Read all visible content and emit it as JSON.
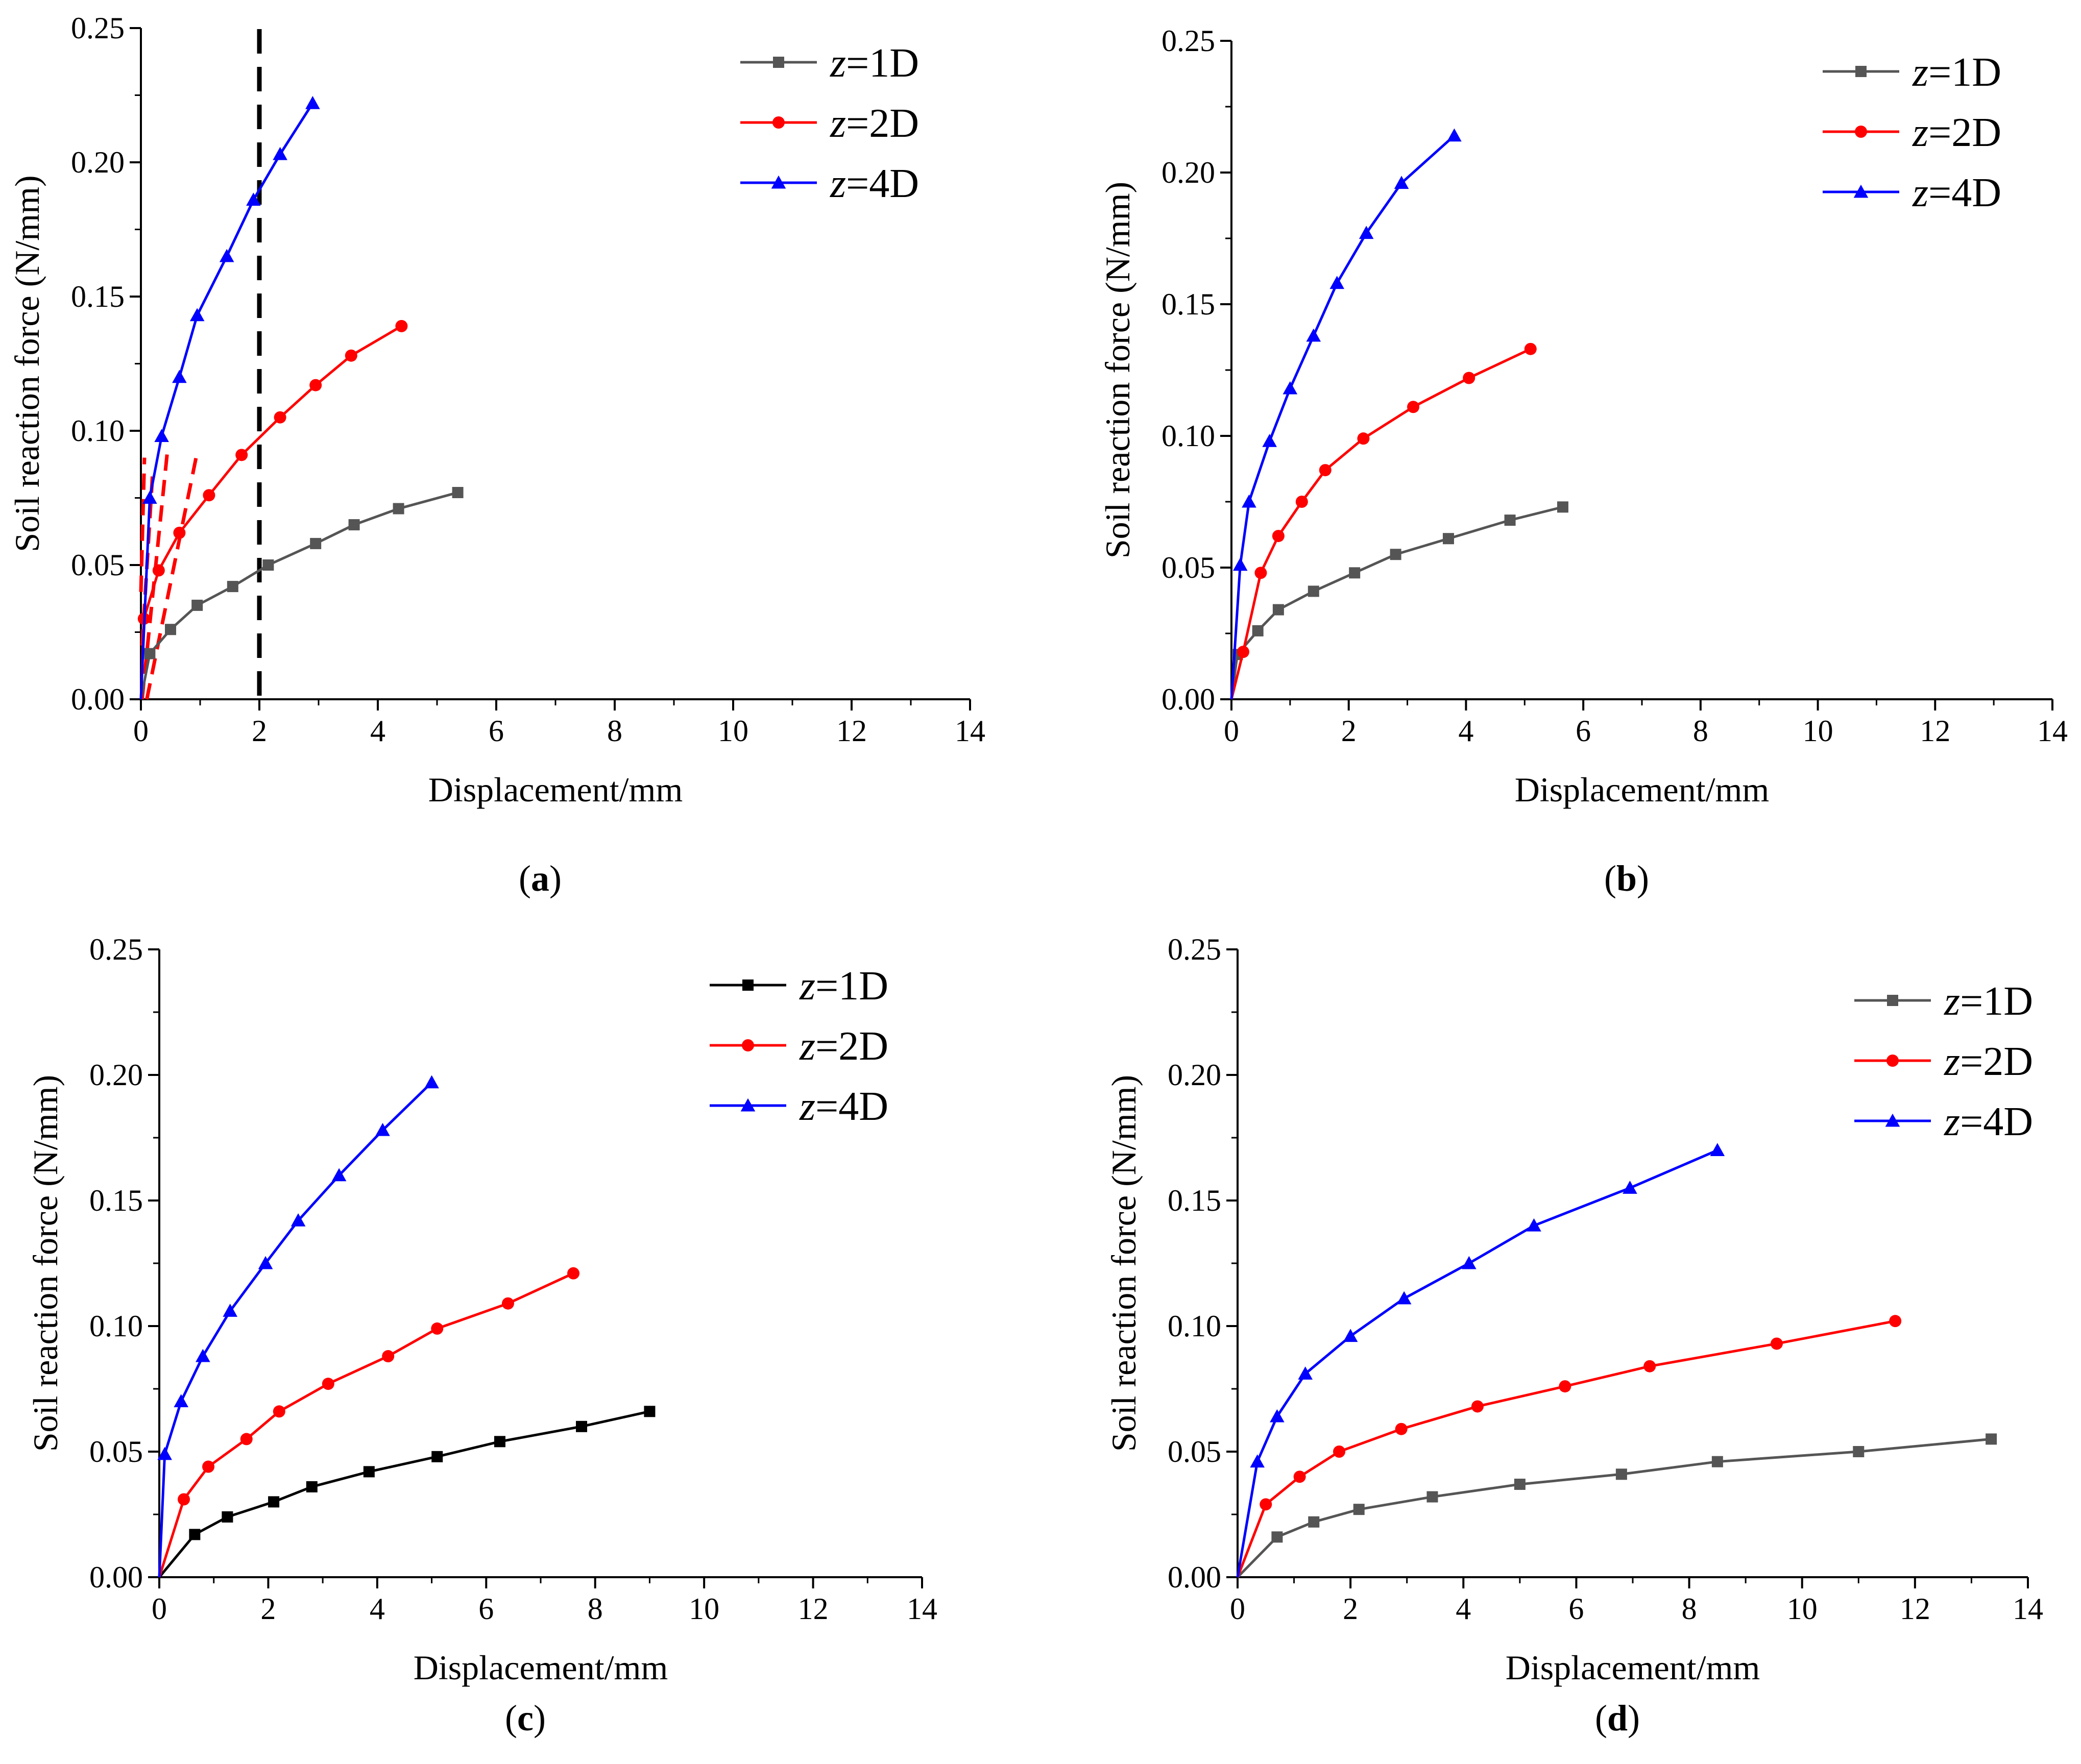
{
  "figure": {
    "panels": [
      {
        "label_open": "(",
        "label_letter": "a",
        "label_close": ")"
      },
      {
        "label_open": "(",
        "label_letter": "b",
        "label_close": ")"
      },
      {
        "label_open": "(",
        "label_letter": "c",
        "label_close": ")"
      },
      {
        "label_open": "(",
        "label_letter": "d",
        "label_close": ")"
      }
    ]
  },
  "chart_data": [
    {
      "type": "line",
      "xlabel": "Displacement/mm",
      "ylabel": "Soil reaction force (N/mm)",
      "xlim": [
        0,
        14
      ],
      "ylim": [
        0,
        0.25
      ],
      "xticks": [
        "0",
        "2",
        "4",
        "6",
        "8",
        "10",
        "12",
        "14"
      ],
      "yticks": [
        "0.00",
        "0.05",
        "0.10",
        "0.15",
        "0.20",
        "0.25"
      ],
      "legend_position": "top-right",
      "series": [
        {
          "name_var": "z",
          "name_rest": "=1D",
          "color": "#555555",
          "marker": "square",
          "x": [
            0,
            0.15,
            0.5,
            0.95,
            1.55,
            2.15,
            2.95,
            3.6,
            4.35,
            5.35
          ],
          "y": [
            0,
            0.017,
            0.026,
            0.035,
            0.042,
            0.05,
            0.058,
            0.065,
            0.071,
            0.077
          ]
        },
        {
          "name_var": "z",
          "name_rest": "=2D",
          "color": "#ff0000",
          "marker": "circle",
          "x": [
            0,
            0.05,
            0.3,
            0.65,
            1.15,
            1.7,
            2.35,
            2.95,
            3.55,
            4.4
          ],
          "y": [
            0,
            0.03,
            0.048,
            0.062,
            0.076,
            0.091,
            0.105,
            0.117,
            0.128,
            0.139
          ]
        },
        {
          "name_var": "z",
          "name_rest": "=4D",
          "color": "#0000ff",
          "marker": "triangle",
          "x": [
            0,
            0.15,
            0.35,
            0.65,
            0.95,
            1.45,
            1.9,
            2.35,
            2.9
          ],
          "y": [
            0,
            0.075,
            0.098,
            0.12,
            0.143,
            0.165,
            0.186,
            0.203,
            0.222
          ]
        }
      ],
      "annotations": {
        "vertical_dashed_line_x": 2,
        "vertical_line_color": "#000000",
        "red_dashed_segments": [
          {
            "x": [
              0.02,
              0.45
            ],
            "y": [
              0.0,
              0.093
            ]
          },
          {
            "x": [
              0.1,
              0.95
            ],
            "y": [
              0.0,
              0.092
            ]
          },
          {
            "x": [
              0.02,
              0.2
            ],
            "y": [
              0.02,
              0.085
            ]
          },
          {
            "x": [
              0.0,
              0.06
            ],
            "y": [
              0.04,
              0.09
            ]
          }
        ],
        "red_dashed_color": "#ff0000"
      }
    },
    {
      "type": "line",
      "xlabel": "Displacement/mm",
      "ylabel": "Soil reaction force (N/mm)",
      "xlim": [
        0,
        14
      ],
      "ylim": [
        0,
        0.25
      ],
      "xticks": [
        "0",
        "2",
        "4",
        "6",
        "8",
        "10",
        "12",
        "14"
      ],
      "yticks": [
        "0.00",
        "0.05",
        "0.10",
        "0.15",
        "0.20",
        "0.25"
      ],
      "legend_position": "top-right",
      "series": [
        {
          "name_var": "z",
          "name_rest": "=1D",
          "color": "#555555",
          "marker": "square",
          "x": [
            0,
            0.1,
            0.45,
            0.8,
            1.4,
            2.1,
            2.8,
            3.7,
            4.75,
            5.65
          ],
          "y": [
            0,
            0.017,
            0.026,
            0.034,
            0.041,
            0.048,
            0.055,
            0.061,
            0.068,
            0.073
          ]
        },
        {
          "name_var": "z",
          "name_rest": "=2D",
          "color": "#ff0000",
          "marker": "circle",
          "x": [
            0,
            0.2,
            0.5,
            0.8,
            1.2,
            1.6,
            2.25,
            3.1,
            4.05,
            5.1
          ],
          "y": [
            0,
            0.018,
            0.048,
            0.062,
            0.075,
            0.087,
            0.099,
            0.111,
            0.122,
            0.133
          ]
        },
        {
          "name_var": "z",
          "name_rest": "=4D",
          "color": "#0000ff",
          "marker": "triangle",
          "x": [
            0,
            0.15,
            0.3,
            0.65,
            1.0,
            1.4,
            1.8,
            2.3,
            2.9,
            3.8
          ],
          "y": [
            0,
            0.051,
            0.075,
            0.098,
            0.118,
            0.138,
            0.158,
            0.177,
            0.196,
            0.214
          ]
        }
      ]
    },
    {
      "type": "line",
      "xlabel": "Displacement/mm",
      "ylabel": "Soil reaction force (N/mm)",
      "xlim": [
        0,
        14
      ],
      "ylim": [
        0,
        0.25
      ],
      "xticks": [
        "0",
        "2",
        "4",
        "6",
        "8",
        "10",
        "12",
        "14"
      ],
      "yticks": [
        "0.00",
        "0.05",
        "0.10",
        "0.15",
        "0.20",
        "0.25"
      ],
      "legend_position": "top-right",
      "series": [
        {
          "name_var": "z",
          "name_rest": "=1D",
          "color": "#000000",
          "marker": "square",
          "x": [
            0,
            0.65,
            1.25,
            2.1,
            2.8,
            3.85,
            5.1,
            6.25,
            7.75,
            9.0
          ],
          "y": [
            0,
            0.017,
            0.024,
            0.03,
            0.036,
            0.042,
            0.048,
            0.054,
            0.06,
            0.066
          ]
        },
        {
          "name_var": "z",
          "name_rest": "=2D",
          "color": "#ff0000",
          "marker": "circle",
          "x": [
            0,
            0.45,
            0.9,
            1.6,
            2.2,
            3.1,
            4.2,
            5.1,
            6.4,
            7.6
          ],
          "y": [
            0,
            0.031,
            0.044,
            0.055,
            0.066,
            0.077,
            0.088,
            0.099,
            0.109,
            0.121
          ]
        },
        {
          "name_var": "z",
          "name_rest": "=4D",
          "color": "#0000ff",
          "marker": "triangle",
          "x": [
            0,
            0.1,
            0.4,
            0.8,
            1.3,
            1.95,
            2.55,
            3.3,
            4.1,
            5.0
          ],
          "y": [
            0,
            0.049,
            0.07,
            0.088,
            0.106,
            0.125,
            0.142,
            0.16,
            0.178,
            0.197
          ]
        }
      ]
    },
    {
      "type": "line",
      "xlabel": "Displacement/mm",
      "ylabel": "Soil reaction force (N/mm)",
      "xlim": [
        0,
        14
      ],
      "ylim": [
        0,
        0.25
      ],
      "xticks": [
        "0",
        "2",
        "4",
        "6",
        "8",
        "10",
        "12",
        "14"
      ],
      "yticks": [
        "0.00",
        "0.05",
        "0.10",
        "0.15",
        "0.20",
        "0.25"
      ],
      "legend_position": "top-right",
      "series": [
        {
          "name_var": "z",
          "name_rest": "=1D",
          "color": "#555555",
          "marker": "square",
          "x": [
            0,
            0.7,
            1.35,
            2.15,
            3.45,
            5.0,
            6.8,
            8.5,
            11.0,
            13.35
          ],
          "y": [
            0,
            0.016,
            0.022,
            0.027,
            0.032,
            0.037,
            0.041,
            0.046,
            0.05,
            0.055
          ]
        },
        {
          "name_var": "z",
          "name_rest": "=2D",
          "color": "#ff0000",
          "marker": "circle",
          "x": [
            0,
            0.5,
            1.1,
            1.8,
            2.9,
            4.25,
            5.8,
            7.3,
            9.55,
            11.65
          ],
          "y": [
            0,
            0.029,
            0.04,
            0.05,
            0.059,
            0.068,
            0.076,
            0.084,
            0.093,
            0.102
          ]
        },
        {
          "name_var": "z",
          "name_rest": "=4D",
          "color": "#0000ff",
          "marker": "triangle",
          "x": [
            0,
            0.35,
            0.7,
            1.2,
            2.0,
            2.95,
            4.1,
            5.25,
            6.95,
            8.5
          ],
          "y": [
            0,
            0.046,
            0.064,
            0.081,
            0.096,
            0.111,
            0.125,
            0.14,
            0.155,
            0.17
          ]
        }
      ]
    }
  ]
}
